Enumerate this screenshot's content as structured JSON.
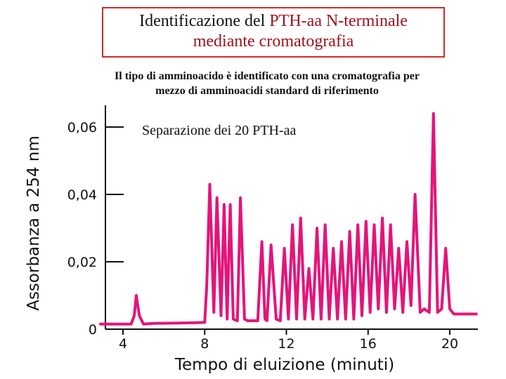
{
  "header": {
    "title_part1": "Identificazione del ",
    "title_part2": "PTH-aa N-terminale",
    "title_line2": "mediante cromatografia",
    "subtitle_line1": "Il tipo di amminoacido è identificato con una cromatografia per",
    "subtitle_line2": "mezzo di amminoacidi standard di riferimento"
  },
  "colors": {
    "trace": "#e3157a",
    "title_red": "#a0111e",
    "frame_red": "#d42a2a",
    "axis": "#111111"
  },
  "chart_data": {
    "type": "line",
    "title": "",
    "annotation": "Separazione dei 20 PTH-aa",
    "xlabel": "Tempo di eluizione (minuti)",
    "ylabel": "Assorbanza a 254 nm",
    "xlim": [
      2.9,
      21.3
    ],
    "ylim": [
      0,
      0.065
    ],
    "x_ticks": [
      4,
      8,
      12,
      16,
      20
    ],
    "x_tick_labels": [
      "4",
      "8",
      "12",
      "16",
      "20"
    ],
    "y_ticks": [
      0,
      0.02,
      0.04,
      0.06
    ],
    "y_tick_labels": [
      "0",
      "0,02",
      "0,04",
      "0,06"
    ],
    "grid": false,
    "series": [
      {
        "name": "",
        "x": [
          2.9,
          4.4,
          4.55,
          4.65,
          4.8,
          5.0,
          5.5,
          6.5,
          7.5,
          8.0,
          8.1,
          8.25,
          8.45,
          8.6,
          8.8,
          8.95,
          9.1,
          9.25,
          9.4,
          9.6,
          9.75,
          9.95,
          10.1,
          10.3,
          10.6,
          10.8,
          10.95,
          11.05,
          11.25,
          11.5,
          11.7,
          11.9,
          12.1,
          12.3,
          12.5,
          12.7,
          12.9,
          13.1,
          13.3,
          13.5,
          13.7,
          13.9,
          14.1,
          14.3,
          14.5,
          14.7,
          14.9,
          15.1,
          15.3,
          15.5,
          15.7,
          15.9,
          16.1,
          16.3,
          16.5,
          16.7,
          16.9,
          17.1,
          17.3,
          17.5,
          17.7,
          17.9,
          18.1,
          18.3,
          18.55,
          18.75,
          19.0,
          19.2,
          19.4,
          19.6,
          19.8,
          20.0,
          20.2,
          20.4,
          20.6,
          20.8,
          21.3
        ],
        "y": [
          0.0015,
          0.0015,
          0.004,
          0.01,
          0.004,
          0.0015,
          0.0017,
          0.0018,
          0.0019,
          0.002,
          0.013,
          0.043,
          0.005,
          0.039,
          0.004,
          0.037,
          0.003,
          0.037,
          0.003,
          0.0025,
          0.039,
          0.003,
          0.0025,
          0.0025,
          0.0025,
          0.026,
          0.003,
          0.0025,
          0.025,
          0.003,
          0.0025,
          0.024,
          0.003,
          0.031,
          0.003,
          0.033,
          0.003,
          0.018,
          0.003,
          0.03,
          0.003,
          0.031,
          0.003,
          0.024,
          0.003,
          0.026,
          0.003,
          0.029,
          0.003,
          0.031,
          0.004,
          0.032,
          0.005,
          0.031,
          0.006,
          0.033,
          0.005,
          0.031,
          0.006,
          0.024,
          0.005,
          0.026,
          0.007,
          0.04,
          0.005,
          0.006,
          0.005,
          0.064,
          0.005,
          0.006,
          0.024,
          0.006,
          0.0045,
          0.0045,
          0.0045,
          0.0045,
          0.0045
        ]
      }
    ]
  }
}
